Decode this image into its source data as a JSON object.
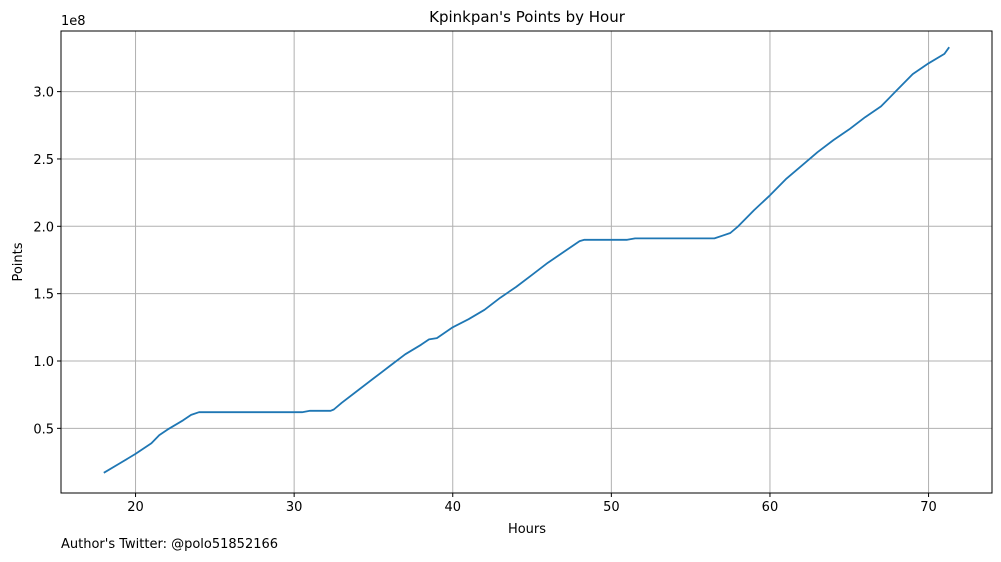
{
  "chart_data": {
    "type": "line",
    "title": "Kpinkpan's Points by Hour",
    "xlabel": "Hours",
    "ylabel": "Points",
    "y_offset_label": "1e8",
    "y_scale": 100000000,
    "xlim": [
      15.3,
      74.0
    ],
    "ylim": [
      2000000,
      345000000
    ],
    "x_ticks": [
      20,
      30,
      40,
      50,
      60,
      70
    ],
    "y_ticks": [
      50000000,
      100000000,
      150000000,
      200000000,
      250000000,
      300000000
    ],
    "x_tick_labels": [
      "20",
      "30",
      "40",
      "50",
      "60",
      "70"
    ],
    "y_tick_labels": [
      "0.5",
      "1.0",
      "1.5",
      "2.0",
      "2.5",
      "3.0"
    ],
    "grid": true,
    "line_color": "#1f77b4",
    "series": [
      {
        "x": [
          18,
          19,
          20,
          21,
          21.5,
          22,
          23,
          23.5,
          24,
          30,
          30.5,
          31,
          32.3,
          32.5,
          33,
          34,
          35,
          36,
          37,
          38,
          38.5,
          39,
          40,
          41,
          42,
          43,
          44,
          45,
          46,
          47,
          48,
          48.3,
          51,
          51.5,
          56.5,
          57,
          57.5,
          58,
          59,
          60,
          61,
          62,
          63,
          64,
          65,
          66,
          67,
          68,
          69,
          70,
          71,
          71.3
        ],
        "y": [
          17000000,
          24000000,
          31000000,
          39000000,
          45000000,
          49000000,
          56000000,
          60000000,
          62000000,
          62000000,
          62000000,
          63000000,
          63000000,
          64000000,
          69000000,
          78000000,
          87000000,
          96000000,
          105000000,
          112000000,
          116000000,
          117000000,
          125000000,
          131000000,
          138000000,
          147000000,
          155000000,
          164000000,
          173000000,
          181000000,
          189000000,
          190000000,
          190000000,
          191000000,
          191000000,
          193000000,
          195000000,
          200000000,
          212000000,
          223000000,
          235000000,
          245000000,
          255000000,
          264000000,
          272000000,
          281000000,
          289000000,
          301000000,
          313000000,
          321000000,
          328000000,
          333000000
        ]
      }
    ]
  },
  "footnote": "Author's Twitter: @polo51852166"
}
